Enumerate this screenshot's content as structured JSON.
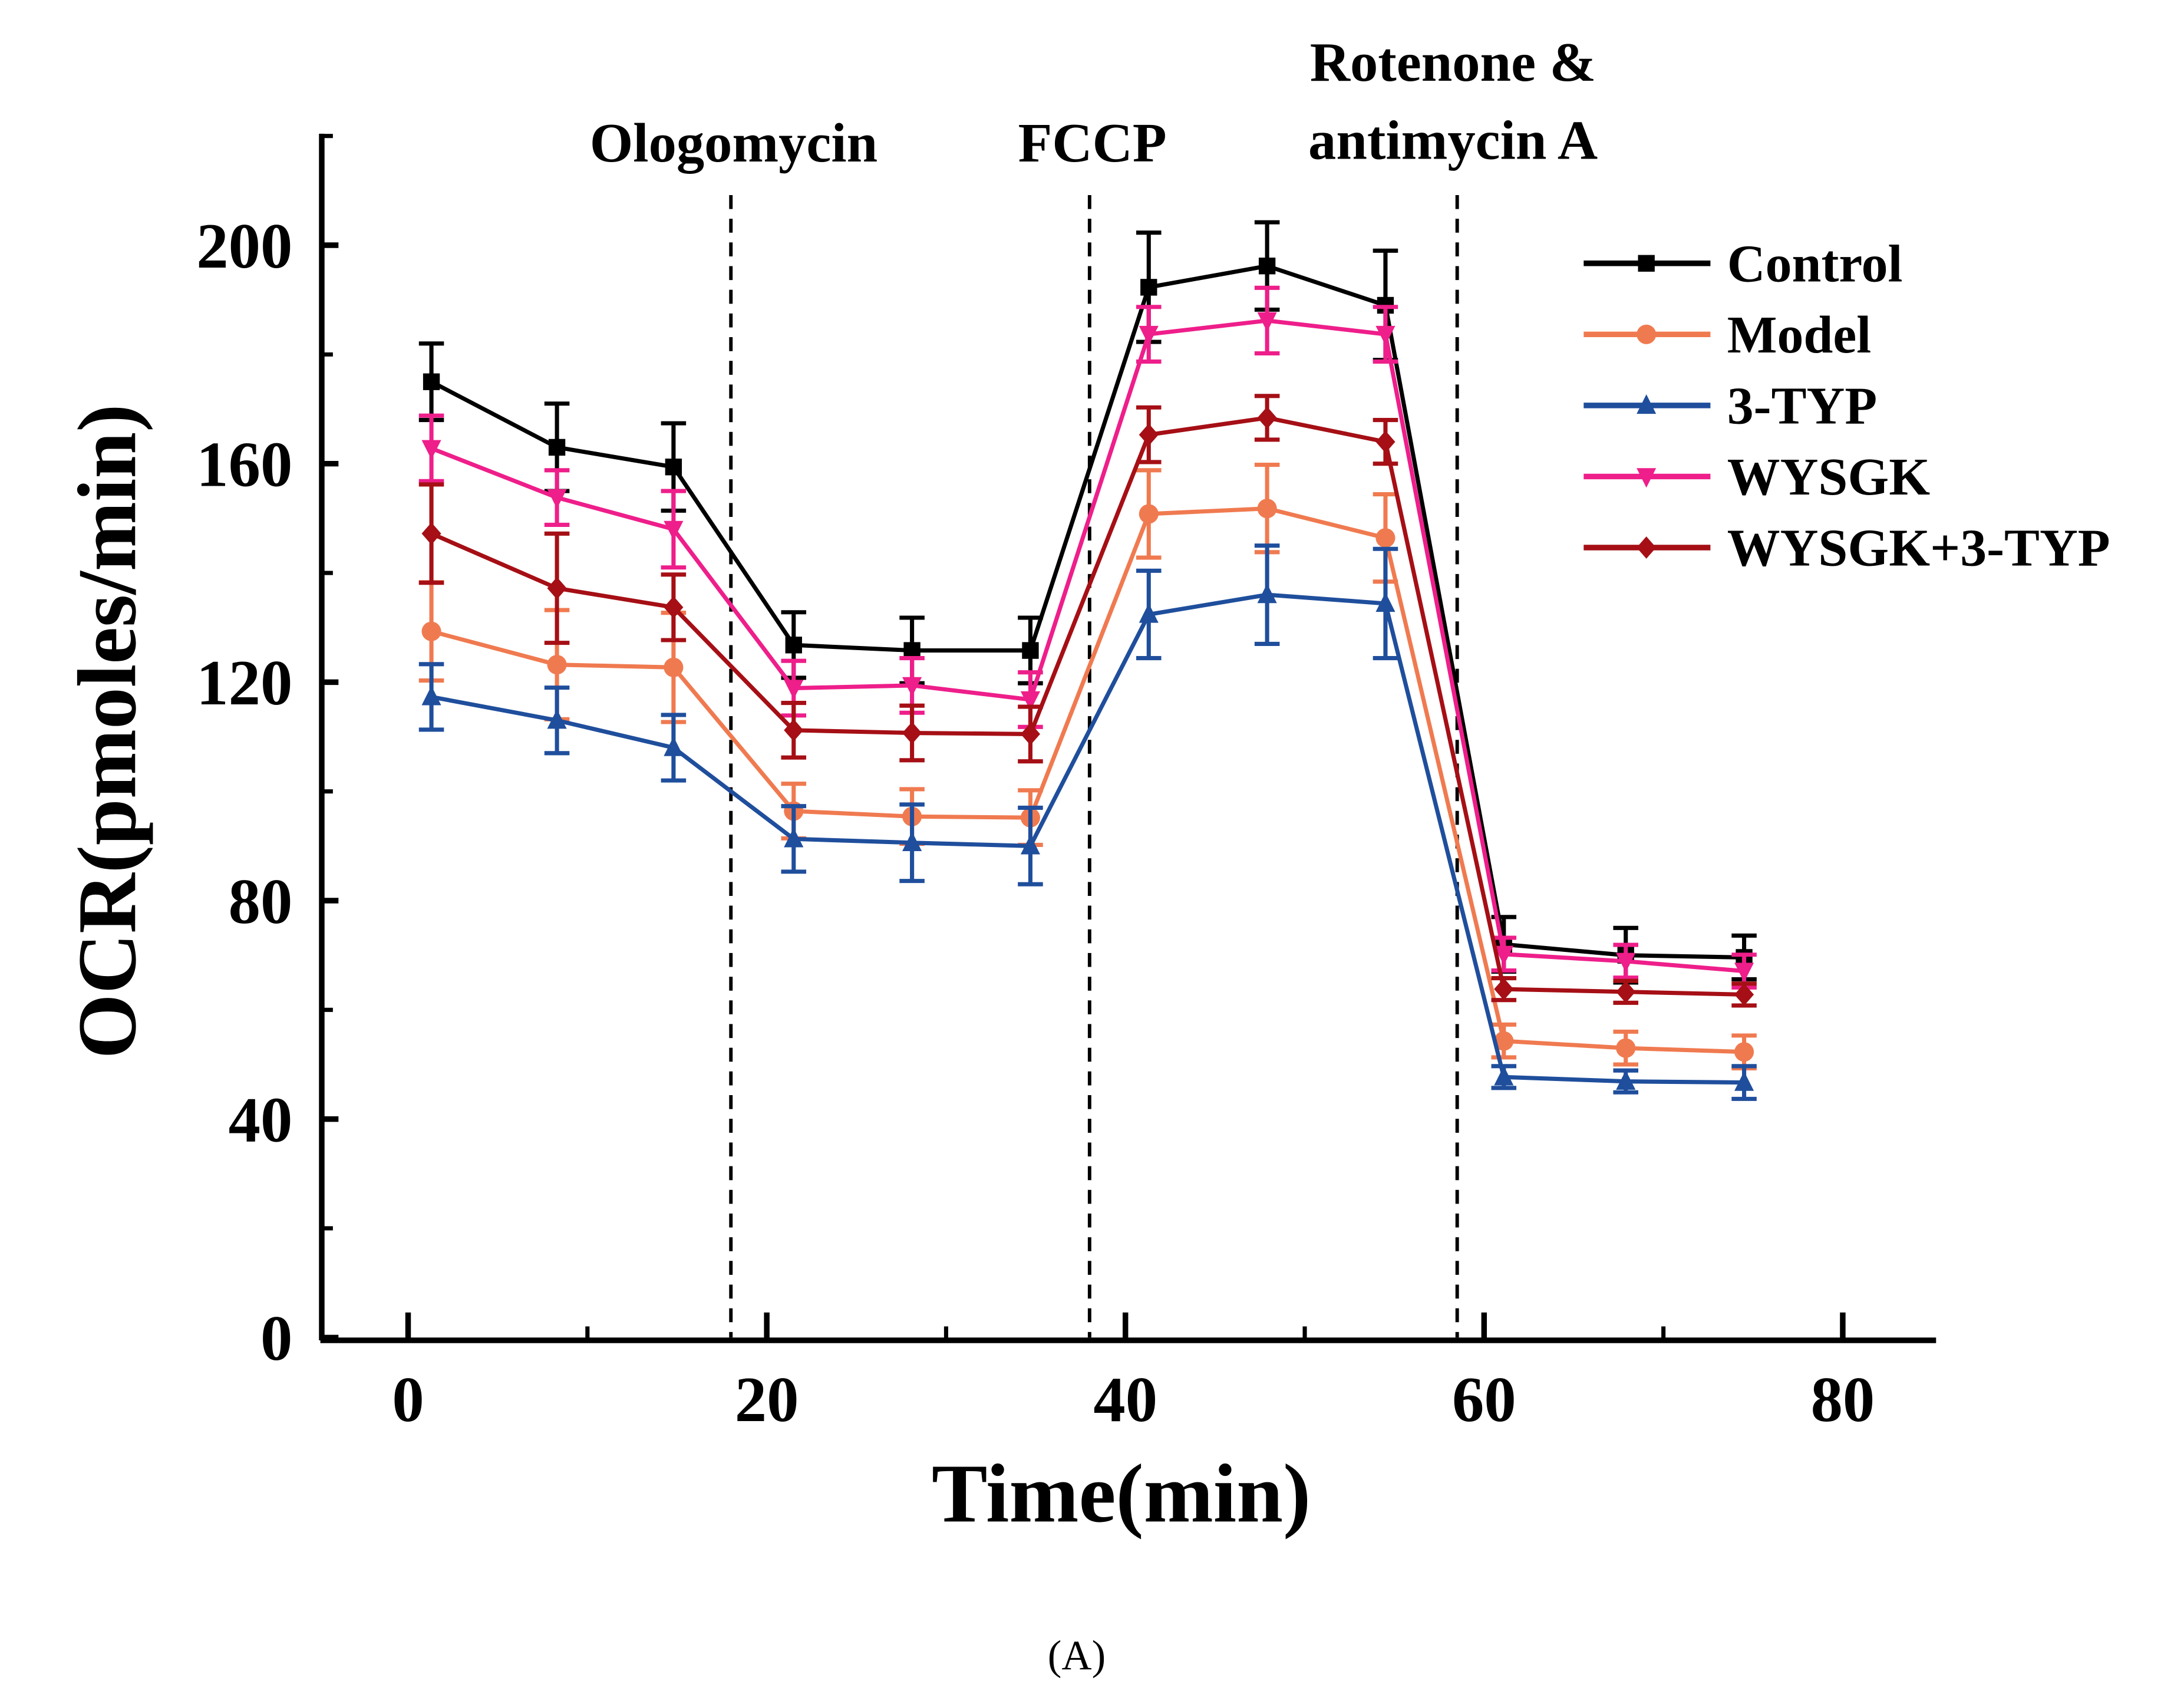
{
  "chart_data": {
    "type": "line",
    "title": "",
    "xlabel": "Time(min)",
    "ylabel": "OCR(pmoles/min)",
    "xlim": [
      -5,
      85
    ],
    "ylim": [
      0,
      220
    ],
    "xticks": [
      0,
      20,
      40,
      60,
      80
    ],
    "yticks": [
      0,
      40,
      80,
      120,
      160,
      200
    ],
    "grid": false,
    "legend_position": "top-right",
    "caption": "(A)",
    "x": [
      1.3,
      8.3,
      14.8,
      21.5,
      28.1,
      34.7,
      41.3,
      47.9,
      54.5,
      61.1,
      67.9,
      74.5
    ],
    "injections": [
      {
        "x": 18,
        "label": [
          "Ologomycin"
        ]
      },
      {
        "x": 38,
        "label": [
          "FCCP"
        ]
      },
      {
        "x": 58.5,
        "label": [
          "Rotenone &",
          "antimycin A"
        ]
      }
    ],
    "series": [
      {
        "name": "Control",
        "color": "#000000",
        "marker": "square",
        "values": [
          175,
          163,
          159.4,
          126.8,
          125.8,
          125.8,
          192.3,
          196.2,
          189,
          72,
          70,
          69.6
        ],
        "errors": [
          7,
          8,
          8,
          6,
          6,
          6,
          10,
          8,
          10,
          5,
          5,
          4
        ]
      },
      {
        "name": "Model",
        "color": "#f07a50",
        "marker": "circle",
        "values": [
          129.3,
          123.2,
          122.7,
          96.4,
          95.4,
          95.2,
          150.8,
          151.8,
          146.4,
          54.3,
          53,
          52.3
        ],
        "errors": [
          9,
          10,
          10,
          5,
          5,
          5,
          8,
          8,
          8,
          3,
          3,
          3
        ]
      },
      {
        "name": "3-TYP",
        "color": "#1f4e9c",
        "marker": "triangle-up",
        "values": [
          117.3,
          113,
          108,
          91.3,
          90.6,
          90,
          132.4,
          136,
          134.4,
          47.7,
          46.9,
          46.7
        ],
        "errors": [
          6,
          6,
          6,
          6,
          7,
          7,
          8,
          9,
          10,
          2,
          2,
          3
        ]
      },
      {
        "name": "WYSGK",
        "color": "#ee1e8a",
        "marker": "triangle-down",
        "values": [
          162.8,
          153.8,
          148,
          118.9,
          119.4,
          116.8,
          183.7,
          186.2,
          183.7,
          70.2,
          68.9,
          67.1
        ],
        "errors": [
          6,
          5,
          7,
          5,
          5,
          5,
          5,
          6,
          5,
          3,
          3,
          3
        ]
      },
      {
        "name": "WYSGK+3-TYP",
        "color": "#a50f15",
        "marker": "diamond",
        "values": [
          147.2,
          137.2,
          133.7,
          111.2,
          110.7,
          110.5,
          165.3,
          168.4,
          164,
          63.8,
          63.3,
          62.8
        ],
        "errors": [
          9,
          10,
          6,
          5,
          5,
          5,
          5,
          4,
          4,
          2,
          2,
          2
        ]
      }
    ]
  }
}
